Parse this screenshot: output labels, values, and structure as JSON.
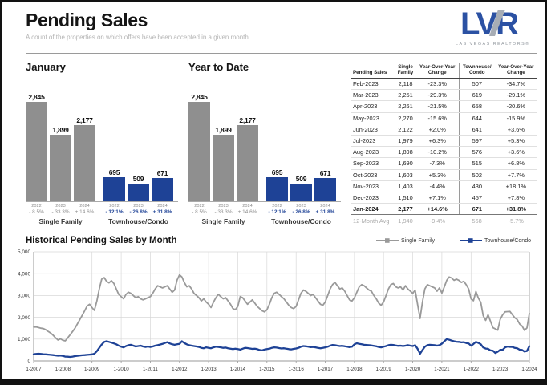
{
  "header": {
    "title": "Pending Sales",
    "subtitle": "A count of the properties on which offers have been accepted in a given month.",
    "logo_text": "LVR",
    "logo_tagline": "LAS VEGAS REALTORS®"
  },
  "colors": {
    "single_family": "#8f8f8f",
    "townhouse_condo": "#1e4296",
    "grid": "#d8d8d8",
    "axis": "#999999",
    "logo_blue": "#2b51a3",
    "logo_gray": "#a7adb5"
  },
  "chart_data": [
    {
      "type": "bar",
      "title": "January",
      "categories": [
        "2022",
        "2023",
        "2024"
      ],
      "series": [
        {
          "name": "Single Family",
          "color": "#8f8f8f",
          "values": [
            2845,
            1899,
            2177
          ],
          "pct_change": [
            "- 8.5%",
            "- 33.3%",
            "+ 14.6%"
          ]
        },
        {
          "name": "Townhouse/Condo",
          "color": "#1e4296",
          "values": [
            695,
            509,
            671
          ],
          "pct_change": [
            "- 12.1%",
            "- 26.8%",
            "+ 31.8%"
          ]
        }
      ],
      "ylim": [
        0,
        3200
      ],
      "grid": false,
      "legend_position": "none"
    },
    {
      "type": "bar",
      "title": "Year to Date",
      "categories": [
        "2022",
        "2023",
        "2024"
      ],
      "series": [
        {
          "name": "Single Family",
          "color": "#8f8f8f",
          "values": [
            2845,
            1899,
            2177
          ],
          "pct_change": [
            "- 8.5%",
            "- 33.3%",
            "+ 14.6%"
          ]
        },
        {
          "name": "Townhouse/Condo",
          "color": "#1e4296",
          "values": [
            695,
            509,
            671
          ],
          "pct_change": [
            "- 12.1%",
            "- 26.8%",
            "+ 31.8%"
          ]
        }
      ],
      "ylim": [
        0,
        3200
      ],
      "grid": false,
      "legend_position": "none"
    },
    {
      "type": "line",
      "title": "Historical Pending Sales by Month",
      "x_tick_labels": [
        "1-2007",
        "1-2008",
        "1-2009",
        "1-2010",
        "1-2011",
        "1-2012",
        "1-2013",
        "1-2014",
        "1-2015",
        "1-2016",
        "1-2017",
        "1-2018",
        "1-2019",
        "1-2020",
        "1-2021",
        "1-2022",
        "1-2023",
        "1-2024"
      ],
      "months_per_tick": 12,
      "y_ticks": [
        0,
        1000,
        2000,
        3000,
        4000,
        5000
      ],
      "ylim": [
        0,
        5000
      ],
      "grid": true,
      "legend_position": "top-right",
      "series": [
        {
          "name": "Single Family",
          "color": "#9a9a9a",
          "values": [
            1550,
            1560,
            1530,
            1500,
            1480,
            1430,
            1350,
            1280,
            1180,
            1060,
            960,
            1010,
            950,
            920,
            1060,
            1200,
            1350,
            1500,
            1700,
            1900,
            2100,
            2300,
            2520,
            2600,
            2450,
            2320,
            2750,
            3300,
            3750,
            3820,
            3650,
            3580,
            3680,
            3550,
            3300,
            3050,
            2950,
            2850,
            3050,
            3150,
            3100,
            3000,
            2900,
            2950,
            2850,
            2800,
            2850,
            2900,
            2950,
            3100,
            3300,
            3450,
            3400,
            3350,
            3400,
            3450,
            3300,
            3150,
            3250,
            3700,
            3950,
            3850,
            3600,
            3400,
            3450,
            3300,
            3100,
            3000,
            2900,
            2750,
            2850,
            2700,
            2600,
            2450,
            2700,
            2900,
            3050,
            2950,
            2850,
            2900,
            2750,
            2600,
            2400,
            2350,
            2500,
            2950,
            2900,
            2750,
            2600,
            2700,
            2800,
            2650,
            2500,
            2400,
            2300,
            2250,
            2350,
            2600,
            2900,
            3100,
            3150,
            3050,
            2950,
            2850,
            2700,
            2550,
            2450,
            2400,
            2500,
            2800,
            3100,
            3250,
            3200,
            3100,
            3000,
            3050,
            2900,
            2750,
            2600,
            2550,
            2700,
            3000,
            3300,
            3500,
            3600,
            3450,
            3300,
            3350,
            3200,
            3000,
            2800,
            2750,
            2900,
            3150,
            3400,
            3500,
            3450,
            3350,
            3250,
            3200,
            3000,
            2850,
            2650,
            2550,
            2700,
            3000,
            3300,
            3500,
            3550,
            3400,
            3350,
            3400,
            3250,
            3450,
            3300,
            3200,
            3100,
            3250,
            2600,
            1950,
            2700,
            3300,
            3500,
            3450,
            3400,
            3350,
            3200,
            3350,
            3109,
            3400,
            3700,
            3850,
            3800,
            3700,
            3750,
            3700,
            3600,
            3650,
            3500,
            3300,
            2845,
            2761,
            3184,
            2880,
            2690,
            2080,
            1862,
            2114,
            1823,
            1522,
            1468,
            1410,
            1899,
            2118,
            2251,
            2261,
            2270,
            2122,
            1979,
            1898,
            1690,
            1603,
            1403,
            1510,
            2177
          ]
        },
        {
          "name": "Townhouse/Condo",
          "color": "#1e4296",
          "values": [
            310,
            320,
            330,
            320,
            310,
            300,
            290,
            280,
            270,
            255,
            240,
            250,
            230,
            200,
            195,
            185,
            200,
            220,
            235,
            250,
            260,
            270,
            280,
            290,
            300,
            330,
            450,
            600,
            750,
            870,
            900,
            870,
            840,
            800,
            760,
            700,
            650,
            620,
            680,
            720,
            740,
            700,
            660,
            680,
            700,
            660,
            640,
            660,
            640,
            660,
            700,
            720,
            750,
            780,
            820,
            860,
            800,
            760,
            740,
            760,
            780,
            900,
            820,
            760,
            720,
            700,
            680,
            660,
            640,
            600,
            580,
            620,
            600,
            580,
            620,
            650,
            640,
            620,
            600,
            610,
            580,
            560,
            540,
            560,
            540,
            520,
            560,
            600,
            590,
            570,
            550,
            560,
            540,
            500,
            480,
            520,
            540,
            560,
            600,
            620,
            610,
            590,
            570,
            580,
            560,
            540,
            530,
            550,
            570,
            600,
            650,
            680,
            670,
            650,
            630,
            640,
            620,
            600,
            580,
            600,
            620,
            650,
            700,
            730,
            720,
            700,
            680,
            690,
            670,
            650,
            630,
            650,
            760,
            810,
            780,
            760,
            740,
            730,
            720,
            710,
            690,
            670,
            640,
            620,
            650,
            680,
            720,
            740,
            730,
            710,
            690,
            700,
            680,
            700,
            720,
            700,
            680,
            720,
            560,
            330,
            500,
            650,
            720,
            740,
            730,
            720,
            700,
            720,
            791,
            900,
            1000,
            970,
            930,
            900,
            880,
            870,
            850,
            860,
            820,
            800,
            695,
            776,
            873,
            829,
            766,
            619,
            567,
            556,
            482,
            466,
            364,
            424,
            509,
            507,
            619,
            658,
            644,
            641,
            597,
            576,
            515,
            502,
            430,
            457,
            671
          ]
        }
      ]
    }
  ],
  "table": {
    "headers": [
      "Pending Sales",
      "Single\nFamily",
      "Year-Over-Year\nChange",
      "Townhouse/\nCondo",
      "Year-Over-Year\nChange"
    ],
    "rows": [
      [
        "Feb-2023",
        "2,118",
        "-23.3%",
        "507",
        "-34.7%"
      ],
      [
        "Mar-2023",
        "2,251",
        "-29.3%",
        "619",
        "-29.1%"
      ],
      [
        "Apr-2023",
        "2,261",
        "-21.5%",
        "658",
        "-20.6%"
      ],
      [
        "May-2023",
        "2,270",
        "-15.6%",
        "644",
        "-15.9%"
      ],
      [
        "Jun-2023",
        "2,122",
        "+2.0%",
        "641",
        "+3.6%"
      ],
      [
        "Jul-2023",
        "1,979",
        "+6.3%",
        "597",
        "+5.3%"
      ],
      [
        "Aug-2023",
        "1,898",
        "-10.2%",
        "576",
        "+3.6%"
      ],
      [
        "Sep-2023",
        "1,690",
        "-7.3%",
        "515",
        "+6.8%"
      ],
      [
        "Oct-2023",
        "1,603",
        "+5.3%",
        "502",
        "+7.7%"
      ],
      [
        "Nov-2023",
        "1,403",
        "-4.4%",
        "430",
        "+18.1%"
      ],
      [
        "Dec-2023",
        "1,510",
        "+7.1%",
        "457",
        "+7.8%"
      ],
      [
        "Jan-2024",
        "2,177",
        "+14.6%",
        "671",
        "+31.8%"
      ]
    ],
    "bold_row": "Jan-2024",
    "avg_row": [
      "12-Month Avg",
      "1,940",
      "-9.4%",
      "568",
      "-5.7%"
    ]
  }
}
